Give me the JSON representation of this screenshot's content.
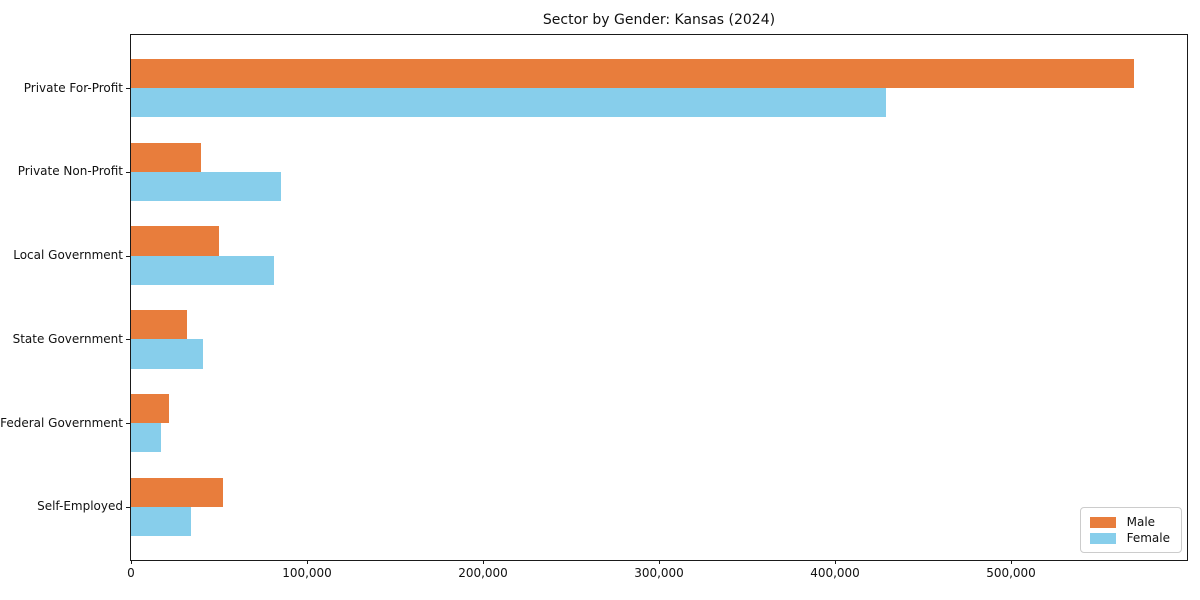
{
  "chart_data": {
    "type": "bar",
    "orientation": "horizontal",
    "title": "Sector by Gender: Kansas (2024)",
    "categories": [
      "Private For-Profit",
      "Private Non-Profit",
      "Local Government",
      "State Government",
      "Federal Government",
      "Self-Employed"
    ],
    "series": [
      {
        "name": "Male",
        "color": "#e87d3c",
        "values": [
          570000,
          40000,
          50000,
          32000,
          21500,
          52000
        ]
      },
      {
        "name": "Female",
        "color": "#87ceeb",
        "values": [
          429000,
          85000,
          81000,
          41000,
          17000,
          34000
        ]
      }
    ],
    "xlim": [
      0,
      600000
    ],
    "xticks": [
      0,
      100000,
      200000,
      300000,
      400000,
      500000
    ],
    "xtick_labels": [
      "0",
      "100,000",
      "200,000",
      "300,000",
      "400,000",
      "500,000"
    ],
    "xlabel": "",
    "ylabel": "",
    "grid": false,
    "legend": {
      "position": "lower right",
      "labels": [
        "Male",
        "Female"
      ]
    },
    "colors": {
      "background": "#ffffff",
      "frame": "#1a1a1a",
      "male": "#e87d3c",
      "female": "#87ceeb"
    }
  }
}
